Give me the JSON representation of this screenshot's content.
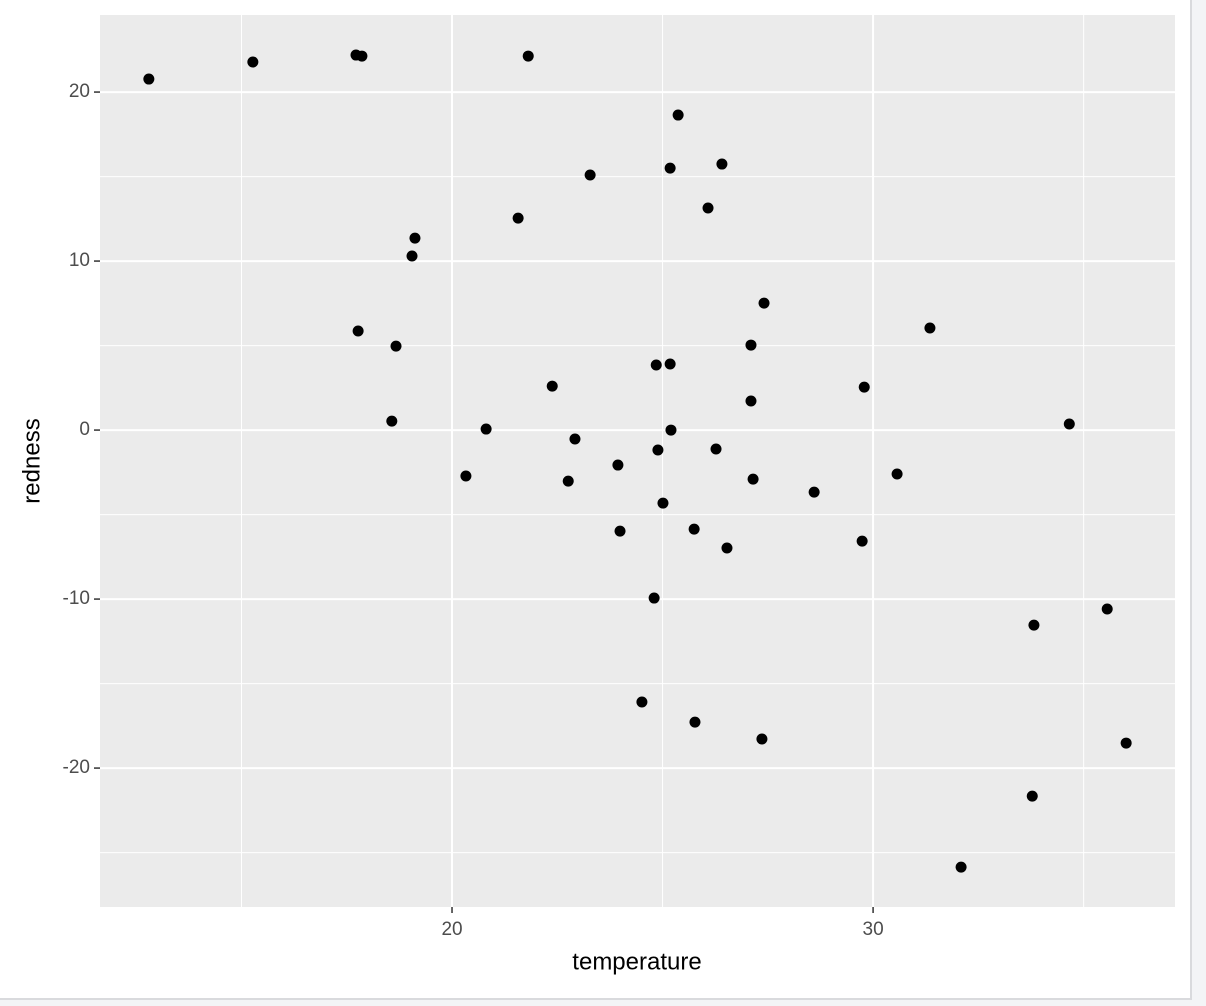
{
  "chart_data": {
    "type": "scatter",
    "x_label": "temperature",
    "y_label": "redness",
    "color": "#000000",
    "grid": true,
    "xlim": [
      11.64,
      37.17
    ],
    "ylim": [
      -28.22,
      24.56
    ],
    "xticks": [
      20,
      30
    ],
    "yticks": [
      -20,
      -10,
      0,
      10,
      20
    ],
    "xminor": [
      15,
      25,
      35
    ],
    "yminor": [
      -25,
      -15,
      -5,
      5,
      15
    ],
    "x": [
      12.8,
      15.27,
      17.72,
      17.86,
      21.81,
      25.37,
      25.18,
      26.41,
      23.28,
      26.08,
      21.57,
      19.12,
      19.05,
      27.41,
      17.77,
      18.67,
      31.35,
      27.1,
      24.85,
      25.18,
      22.38,
      29.79,
      27.1,
      18.57,
      20.81,
      25.2,
      34.66,
      22.92,
      24.89,
      26.27,
      23.94,
      22.76,
      27.15,
      30.57,
      28.6,
      20.33,
      25.01,
      23.99,
      25.75,
      26.53,
      29.74,
      24.8,
      35.56,
      33.82,
      24.51,
      25.77,
      27.36,
      36.01,
      33.78,
      32.09
    ],
    "values": [
      20.77,
      21.78,
      22.19,
      22.13,
      22.13,
      18.64,
      15.5,
      15.74,
      15.09,
      13.14,
      12.54,
      11.36,
      10.3,
      7.51,
      5.86,
      4.97,
      6.04,
      5.03,
      3.85,
      3.91,
      2.6,
      2.54,
      1.72,
      0.53,
      0.06,
      0.0,
      0.36,
      -0.53,
      -1.18,
      -1.12,
      -2.07,
      -3.02,
      -2.9,
      -2.6,
      -3.67,
      -2.72,
      -4.32,
      -5.98,
      -5.86,
      -6.98,
      -6.57,
      -9.94,
      -10.59,
      -11.54,
      -16.09,
      -17.28,
      -18.28,
      -18.52,
      -21.66,
      -25.86
    ]
  }
}
